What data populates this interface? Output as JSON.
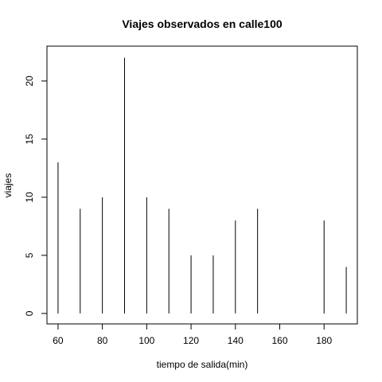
{
  "chart_data": {
    "type": "bar",
    "title": "Viajes observados en calle100",
    "xlabel": "tiempo de salida(min)",
    "ylabel": "viajes",
    "x": [
      60,
      70,
      80,
      90,
      100,
      110,
      120,
      130,
      140,
      150,
      160,
      170,
      180,
      190
    ],
    "values": [
      13,
      9,
      10,
      22,
      10,
      9,
      5,
      5,
      8,
      9,
      0,
      0,
      8,
      4
    ],
    "xlim": [
      55,
      195
    ],
    "ylim": [
      -0.9,
      23.0
    ],
    "xticks": [
      "60",
      "80",
      "100",
      "120",
      "140",
      "160",
      "180"
    ],
    "yticks": [
      "0",
      "5",
      "10",
      "15",
      "20"
    ],
    "grid": false,
    "line_color": "#000000"
  }
}
